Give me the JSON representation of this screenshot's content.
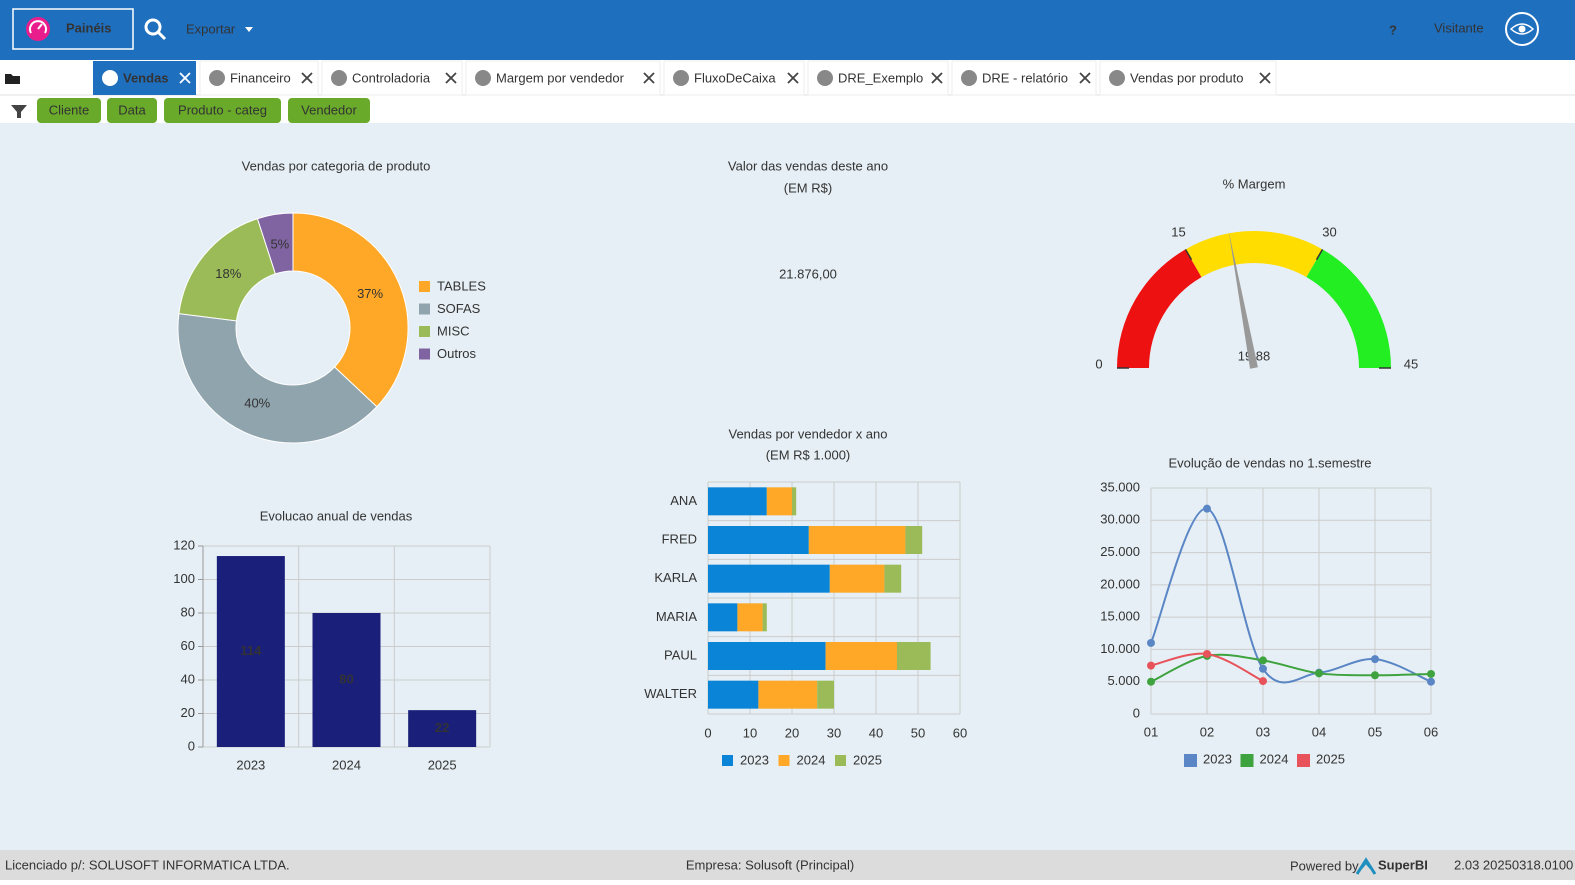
{
  "header": {
    "brand": "Painéis",
    "export": "Exportar",
    "help": "?",
    "user": "Visitante"
  },
  "tabs": [
    "Vendas",
    "Financeiro",
    "Controladoria",
    "Margem por vendedor",
    "FluxoDeCaixa",
    "DRE_Exemplo",
    "DRE - relatório",
    "Vendas por produto"
  ],
  "filters": [
    "Cliente",
    "Data",
    "Produto - categ",
    "Vendedor"
  ],
  "chart_data": [
    {
      "type": "pie",
      "title": "Vendas por categoria de produto",
      "categories": [
        "TABLES",
        "SOFAS",
        "MISC",
        "Outros"
      ],
      "values": [
        37,
        40,
        18,
        5
      ],
      "value_labels": [
        "37%",
        "40%",
        "18%",
        "5%"
      ],
      "colors": [
        "#ffa726",
        "#90a4ae",
        "#9bbb59",
        "#8064a2"
      ],
      "legend": "right"
    },
    {
      "type": "kpi",
      "title": "Valor das vendas deste ano",
      "subtitle": "(EM R$)",
      "values": [
        21876
      ],
      "value_labels": [
        "21.876,00"
      ],
      "color": "#1e6b25"
    },
    {
      "type": "gauge",
      "title": "% Margem",
      "values": [
        19.88
      ],
      "value_labels": [
        "19,88"
      ],
      "ylim": [
        0,
        45
      ],
      "yticks": [
        0,
        15,
        30,
        45
      ],
      "colors": [
        "#ee1111",
        "#ffdd00",
        "#22ee22"
      ]
    },
    {
      "type": "bar",
      "title": "Evolucao anual de vendas",
      "categories": [
        "2023",
        "2024",
        "2025"
      ],
      "values": [
        114,
        80,
        22
      ],
      "color": "#1a1f7a",
      "ylim": [
        0,
        120
      ],
      "yticks": [
        0,
        20,
        40,
        60,
        80,
        100,
        120
      ],
      "grid": true
    },
    {
      "type": "hbar",
      "stacked": true,
      "title": "Vendas por vendedor x ano",
      "subtitle": "(EM R$ 1.000)",
      "categories": [
        "ANA",
        "FRED",
        "KARLA",
        "MARIA",
        "PAUL",
        "WALTER"
      ],
      "series": [
        {
          "name": "2023",
          "color": "#0a84d6",
          "values": [
            14,
            24,
            29,
            7,
            28,
            12
          ]
        },
        {
          "name": "2024",
          "color": "#ffa726",
          "values": [
            6,
            23,
            13,
            6,
            17,
            14
          ]
        },
        {
          "name": "2025",
          "color": "#9bbb59",
          "values": [
            1,
            4,
            4,
            1,
            8,
            4
          ]
        }
      ],
      "xlim": [
        0,
        60
      ],
      "xticks": [
        0,
        10,
        20,
        30,
        40,
        50,
        60
      ],
      "grid": true,
      "legend": "bottom"
    },
    {
      "type": "line",
      "smooth": true,
      "title": "Evolução de vendas no 1.semestre",
      "categories": [
        "01",
        "02",
        "03",
        "04",
        "05",
        "06"
      ],
      "series": [
        {
          "name": "2023",
          "color": "#5b86c5",
          "values": [
            11000,
            31800,
            7000,
            6400,
            8500,
            5000
          ]
        },
        {
          "name": "2024",
          "color": "#3ea33e",
          "values": [
            5000,
            9000,
            8300,
            6300,
            6000,
            6200
          ]
        },
        {
          "name": "2025",
          "color": "#e8525a",
          "values": [
            7500,
            9300,
            5100,
            null,
            null,
            null
          ]
        }
      ],
      "ylim": [
        0,
        35000
      ],
      "yticks": [
        0,
        {
          "value": 5000,
          "label": "5.000"
        },
        {
          "value": 10000,
          "label": "10.000"
        },
        {
          "value": 15000,
          "label": "15.000"
        },
        {
          "value": 20000,
          "label": "20.000"
        },
        {
          "value": 25000,
          "label": "25.000"
        },
        {
          "value": 30000,
          "label": "30.000"
        },
        {
          "value": 35000,
          "label": "35.000"
        }
      ],
      "grid": true,
      "legend": "bottom"
    }
  ],
  "footer": {
    "license": "Licenciado p/: SOLUSOFT INFORMATICA LTDA.",
    "company": "Empresa: Solusoft (Principal)",
    "powered": "Powered by",
    "brand": "SuperBI",
    "version": "2.03 20250318.0100"
  }
}
